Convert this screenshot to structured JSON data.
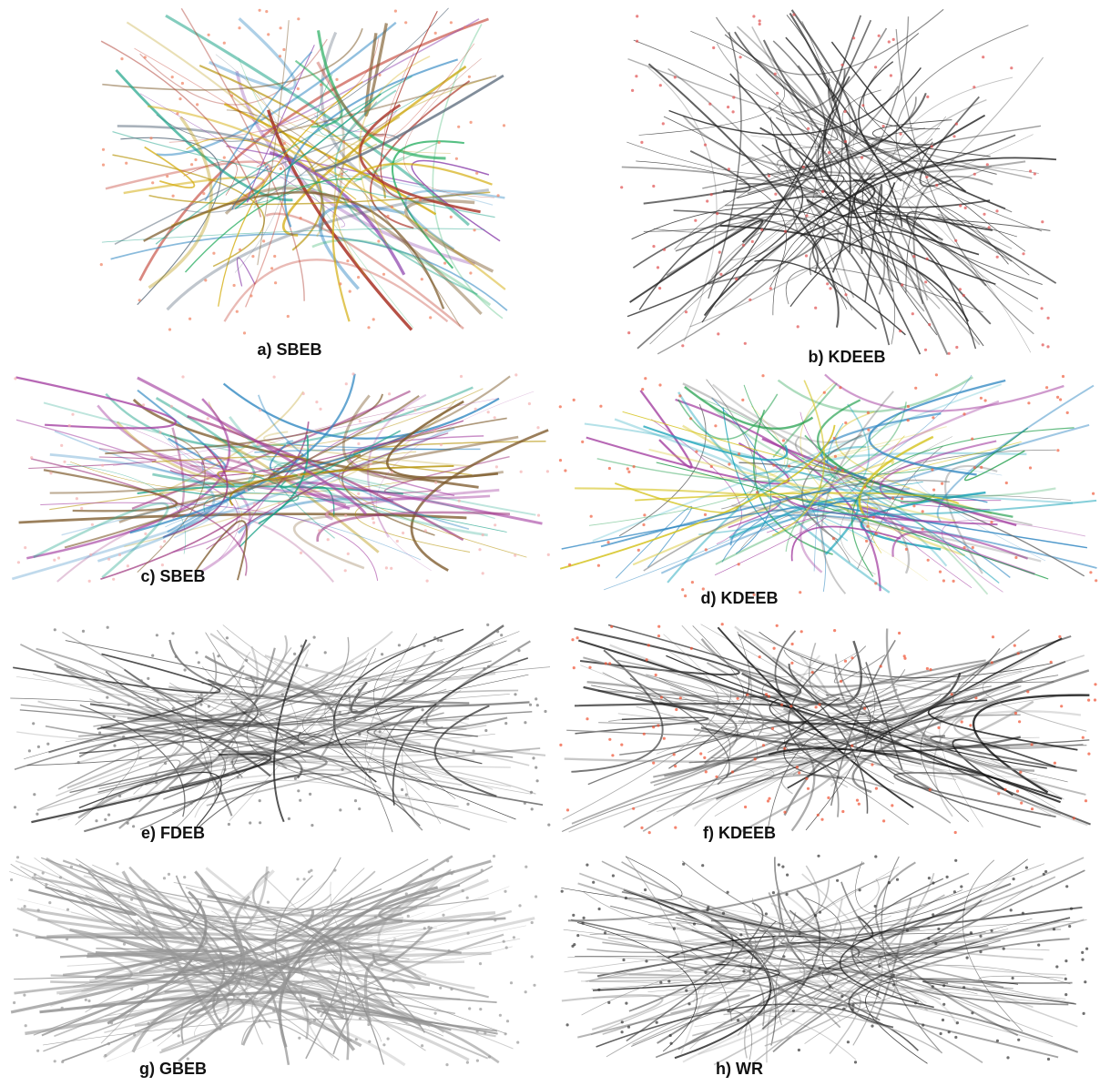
{
  "panels": [
    {
      "label": "a) SBEB"
    },
    {
      "label": "b) KDEEB"
    },
    {
      "label": "c) SBEB"
    },
    {
      "label": "d) KDEEB"
    },
    {
      "label": "e) FDEB"
    },
    {
      "label": "f) KDEEB"
    },
    {
      "label": "g) GBEB"
    },
    {
      "label": "h) WR"
    }
  ]
}
